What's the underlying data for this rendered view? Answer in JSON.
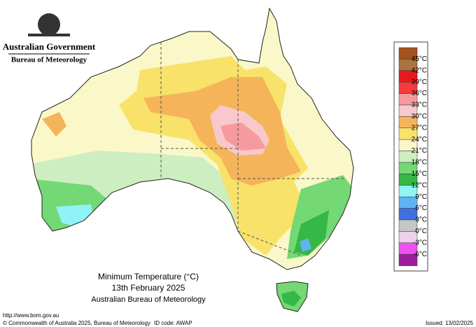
{
  "header": {
    "government": "Australian Government",
    "bureau": "Bureau of Meteorology"
  },
  "legend": {
    "colors": [
      "#a4521e",
      "#ab7340",
      "#e8191e",
      "#f33c3c",
      "#f59a9e",
      "#f8c8cc",
      "#f5b45a",
      "#f8e26a",
      "#faf8c8",
      "#cdeec0",
      "#74d874",
      "#35b845",
      "#8ff3f8",
      "#5fb4f2",
      "#3f6fe0",
      "#c6c6c6",
      "#ecd0ec",
      "#f050f0",
      "#9a1e9a"
    ],
    "labels": [
      "45°C",
      "42°C",
      "39°C",
      "36°C",
      "33°C",
      "30°C",
      "27°C",
      "24°C",
      "21°C",
      "18°C",
      "15°C",
      "12°C",
      "9°C",
      "6°C",
      "3°C",
      "0°C",
      "-3°C",
      "-6°C"
    ]
  },
  "map_title": {
    "line1": "Minimum Temperature (°C)",
    "line2": "13th February 2025",
    "line3": "Australian Bureau of Meteorology"
  },
  "footer": {
    "url": "http://www.bom.gov.au",
    "copyright": "© Commonwealth of Australia 2025, Bureau of Meteorology",
    "id_code": "ID code: AWAP",
    "issued": "Issued: 13/02/2025"
  }
}
